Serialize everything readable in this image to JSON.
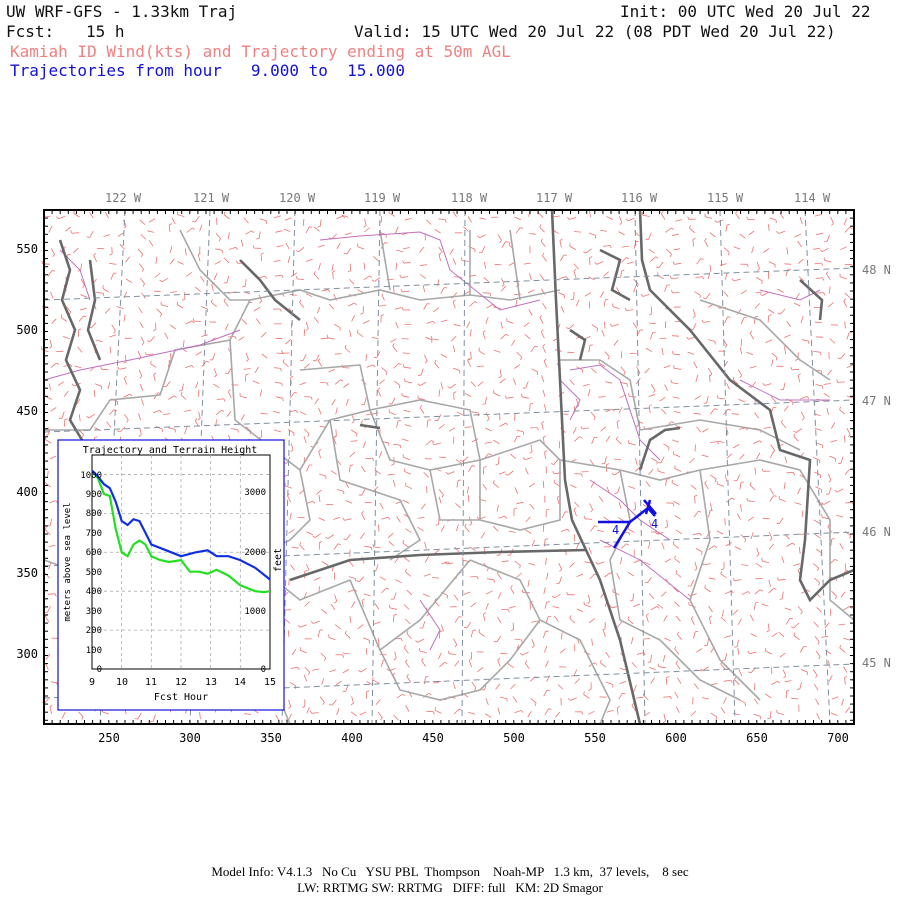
{
  "header": {
    "title": "UW WRF-GFS - 1.33km Traj",
    "init": "Init: 00 UTC Wed 20 Jul 22",
    "fcst_label": "Fcst:",
    "fcst_value": "15 h",
    "valid": "Valid: 15 UTC Wed 20 Jul 22 (08 PDT Wed 20 Jul 22)",
    "subtitle_red": "Kamiah ID Wind(kts) and Trajectory ending at 50m AGL",
    "subtitle_blue": "Trajectories from hour   9.000 to  15.000"
  },
  "map": {
    "top_longitudes": [
      "122 W",
      "121 W",
      "120 W",
      "119 W",
      "118 W",
      "117 W",
      "116 W",
      "115 W",
      "114 W"
    ],
    "right_latitudes": [
      "48 N",
      "47 N",
      "46 N",
      "45 N"
    ],
    "left_ticks": [
      "550",
      "500",
      "450",
      "400",
      "350",
      "300"
    ],
    "bottom_ticks": [
      "250",
      "300",
      "350",
      "400",
      "450",
      "500",
      "550",
      "600",
      "650",
      "700"
    ],
    "trajectory_labels": [
      "4",
      "4"
    ],
    "colors": {
      "barbs": "#f07070",
      "terrain": "#a0a0a0",
      "rivers": "#c070c0",
      "coast": "#686868",
      "traj": "#1010e0"
    }
  },
  "inset": {
    "title": "Trajectory and Terrain Height",
    "ylabel_left": "meters above sea level",
    "ylabel_right": "feet",
    "xlabel": "Fcst Hour",
    "left_ticks": [
      "1000",
      "900",
      "800",
      "700",
      "600",
      "500",
      "400",
      "300",
      "200",
      "100",
      "0"
    ],
    "right_ticks": [
      "3000",
      "2000",
      "1000",
      "0"
    ],
    "x_ticks": [
      "9",
      "10",
      "11",
      "12",
      "13",
      "14",
      "15"
    ]
  },
  "chart_data": {
    "type": "line",
    "title": "Trajectory and Terrain Height",
    "xlabel": "Fcst Hour",
    "ylabel": "meters above sea level",
    "xlim": [
      9,
      15
    ],
    "ylim": [
      0,
      1100
    ],
    "grid": true,
    "series": [
      {
        "color": "#1030e0",
        "x": [
          9.0,
          9.2,
          9.4,
          9.6,
          9.8,
          10.0,
          10.2,
          10.4,
          10.6,
          10.8,
          11.0,
          11.5,
          12.0,
          12.5,
          12.9,
          13.2,
          13.6,
          14.0,
          14.5,
          15.0
        ],
        "values": [
          1020,
          990,
          950,
          930,
          860,
          760,
          740,
          770,
          760,
          700,
          640,
          610,
          580,
          600,
          610,
          580,
          580,
          560,
          520,
          460
        ]
      },
      {
        "color": "#20e020",
        "x": [
          9.0,
          9.2,
          9.4,
          9.6,
          9.8,
          10.0,
          10.2,
          10.4,
          10.6,
          10.8,
          11.0,
          11.3,
          11.6,
          12.0,
          12.3,
          12.6,
          12.9,
          13.2,
          13.6,
          14.0,
          14.5,
          14.8,
          15.0
        ],
        "values": [
          1020,
          980,
          900,
          890,
          720,
          600,
          580,
          640,
          660,
          640,
          580,
          560,
          550,
          560,
          500,
          500,
          490,
          510,
          480,
          430,
          400,
          395,
          400
        ]
      }
    ]
  },
  "footer": {
    "line1": "Model Info: V4.1.3   No Cu   YSU PBL  Thompson    Noah-MP   1.3 km,  37 levels,    8 sec",
    "line2": "LW: RRTMG SW: RRTMG   DIFF: full   KM: 2D Smagor"
  }
}
